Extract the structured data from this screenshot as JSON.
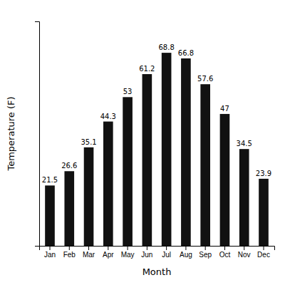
{
  "chart_data": {
    "type": "bar",
    "categories": [
      "Jan",
      "Feb",
      "Mar",
      "Apr",
      "May",
      "Jun",
      "Jul",
      "Aug",
      "Sep",
      "Oct",
      "Nov",
      "Dec"
    ],
    "values": [
      21.5,
      26.6,
      35.1,
      44.3,
      53.0,
      61.2,
      68.8,
      66.8,
      57.6,
      47.0,
      34.5,
      23.9
    ],
    "color": "#111111",
    "xlabel": "Month",
    "ylabel": "Temperature (F)",
    "ylim": [
      0,
      80
    ],
    "yticks": [],
    "grid": false,
    "data_labels": true,
    "tick_labels": "x"
  }
}
